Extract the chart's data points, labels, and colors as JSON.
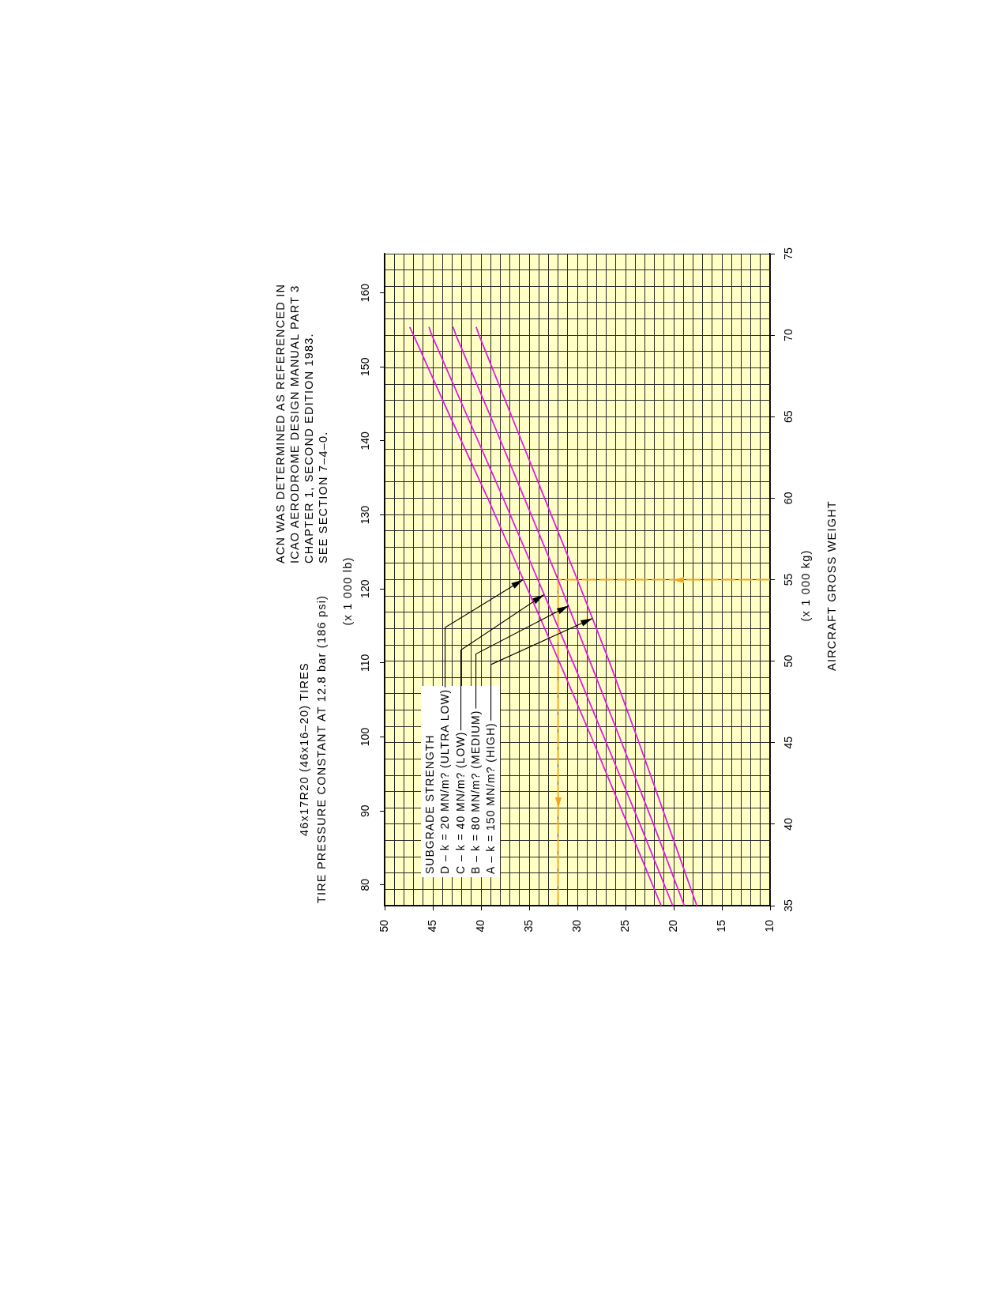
{
  "chart_data": {
    "type": "line",
    "title": "46x17R20 (46x16–20) TIRES",
    "subtitle": "TIRE PRESSURE CONSTANT AT 12.8 bar (186 psi)",
    "annotations": [
      "ACN WAS DETERMINED AS REFERENCED IN\nICAO AERODROME DESIGN MANUAL PART 3\nCHAPTER 1, SECOND EDITION 1983.\nSEE SECTION 7–4–0.",
      "SUBGRADE STRENGTH",
      {
        "text": "D – k = 20 MN/m? (ULTRA LOW)",
        "x": 35.6,
        "y": 55
      },
      {
        "text": "C – k = 40 MN/m? (LOW)",
        "x": 33.5,
        "y": 54.1
      },
      {
        "text": "B – k = 80 MN/m? (MEDIUM)",
        "x": 30.9,
        "y": 53.4
      },
      {
        "text": "A – k = 150 MN/m? (HIGH)",
        "x": 28.4,
        "y": 52.6
      }
    ],
    "ylabel": "(x 1 000 kg)\nAIRCRAFT GROSS WEIGHT",
    "y2label": "(x 1 000 lb)",
    "grid": true,
    "marker": "none",
    "xlim": [
      50,
      10
    ],
    "xticks": [
      10,
      {
        "value": 11,
        "label": null
      },
      {
        "value": 12,
        "label": null
      },
      {
        "value": 13,
        "label": null
      },
      {
        "value": 14,
        "label": null
      },
      15,
      {
        "value": 16,
        "label": null
      },
      {
        "value": 17,
        "label": null
      },
      {
        "value": 18,
        "label": null
      },
      {
        "value": 19,
        "label": null
      },
      20,
      {
        "value": 21,
        "label": null
      },
      {
        "value": 22,
        "label": null
      },
      {
        "value": 23,
        "label": null
      },
      {
        "value": 24,
        "label": null
      },
      25,
      {
        "value": 26,
        "label": null
      },
      {
        "value": 27,
        "label": null
      },
      {
        "value": 28,
        "label": null
      },
      {
        "value": 29,
        "label": null
      },
      30,
      {
        "value": 31,
        "label": null
      },
      {
        "value": 32,
        "label": null
      },
      {
        "value": 33,
        "label": null
      },
      {
        "value": 34,
        "label": null
      },
      35,
      {
        "value": 36,
        "label": null
      },
      {
        "value": 37,
        "label": null
      },
      {
        "value": 38,
        "label": null
      },
      {
        "value": 39,
        "label": null
      },
      40,
      {
        "value": 41,
        "label": null
      },
      {
        "value": 42,
        "label": null
      },
      {
        "value": 43,
        "label": null
      },
      {
        "value": 44,
        "label": null
      },
      45,
      {
        "value": 46,
        "label": null
      },
      {
        "value": 47,
        "label": null
      },
      {
        "value": 48,
        "label": null
      },
      {
        "value": 49,
        "label": null
      },
      50
    ],
    "ylim": [
      35,
      75
    ],
    "yticks": [
      35,
      {
        "value": 36,
        "label": null
      },
      {
        "value": 37,
        "label": null
      },
      {
        "value": 38,
        "label": null
      },
      {
        "value": 39,
        "label": null
      },
      40,
      {
        "value": 41,
        "label": null
      },
      {
        "value": 42,
        "label": null
      },
      {
        "value": 43,
        "label": null
      },
      {
        "value": 44,
        "label": null
      },
      45,
      {
        "value": 46,
        "label": null
      },
      {
        "value": 47,
        "label": null
      },
      {
        "value": 48,
        "label": null
      },
      {
        "value": 49,
        "label": null
      },
      50,
      {
        "value": 51,
        "label": null
      },
      {
        "value": 52,
        "label": null
      },
      {
        "value": 53,
        "label": null
      },
      {
        "value": 54,
        "label": null
      },
      55,
      {
        "value": 56,
        "label": null
      },
      {
        "value": 57,
        "label": null
      },
      {
        "value": 58,
        "label": null
      },
      {
        "value": 59,
        "label": null
      },
      60,
      {
        "value": 61,
        "label": null
      },
      {
        "value": 62,
        "label": null
      },
      {
        "value": 63,
        "label": null
      },
      {
        "value": 64,
        "label": null
      },
      65,
      {
        "value": 66,
        "label": null
      },
      {
        "value": 67,
        "label": null
      },
      {
        "value": 68,
        "label": null
      },
      {
        "value": 69,
        "label": null
      },
      70,
      {
        "value": 71,
        "label": null
      },
      {
        "value": 72,
        "label": null
      },
      {
        "value": 73,
        "label": null
      },
      {
        "value": 74,
        "label": null
      },
      75
    ],
    "y2lim": [
      77.2,
      165.3
    ],
    "y2ticks": [
      80,
      90,
      100,
      110,
      120,
      130,
      140,
      150,
      160
    ],
    "series": [
      {
        "color": "#e01ee0",
        "x": [
          21.3,
          24.8,
          28.3,
          31.9,
          35.6,
          39.3,
          43.2,
          47.0,
          47.4
        ],
        "values": [
          35,
          40,
          45,
          50,
          55,
          60,
          65,
          70,
          70.5
        ]
      },
      {
        "color": "#e01ee0",
        "x": [
          20.1,
          23.5,
          27.0,
          30.5,
          34.1,
          37.7,
          41.4,
          45.1,
          45.4
        ],
        "values": [
          35,
          40,
          45,
          50,
          55,
          60,
          65,
          70,
          70.5
        ]
      },
      {
        "color": "#e01ee0",
        "x": [
          18.9,
          22.1,
          25.4,
          28.7,
          32.0,
          35.5,
          39.0,
          42.6,
          42.9
        ],
        "values": [
          35,
          40,
          45,
          50,
          55,
          60,
          65,
          70,
          70.5
        ]
      },
      {
        "color": "#e01ee0",
        "x": [
          17.6,
          20.6,
          23.6,
          26.7,
          30.0,
          33.4,
          36.8,
          40.2,
          40.5
        ],
        "values": [
          35,
          40,
          45,
          50,
          55,
          60,
          65,
          70,
          70.5
        ]
      },
      {
        "color": "#f5a31a",
        "line_style": "dashed",
        "x": [
          10,
          32,
          32
        ],
        "values": [
          55,
          55,
          35
        ]
      }
    ]
  }
}
